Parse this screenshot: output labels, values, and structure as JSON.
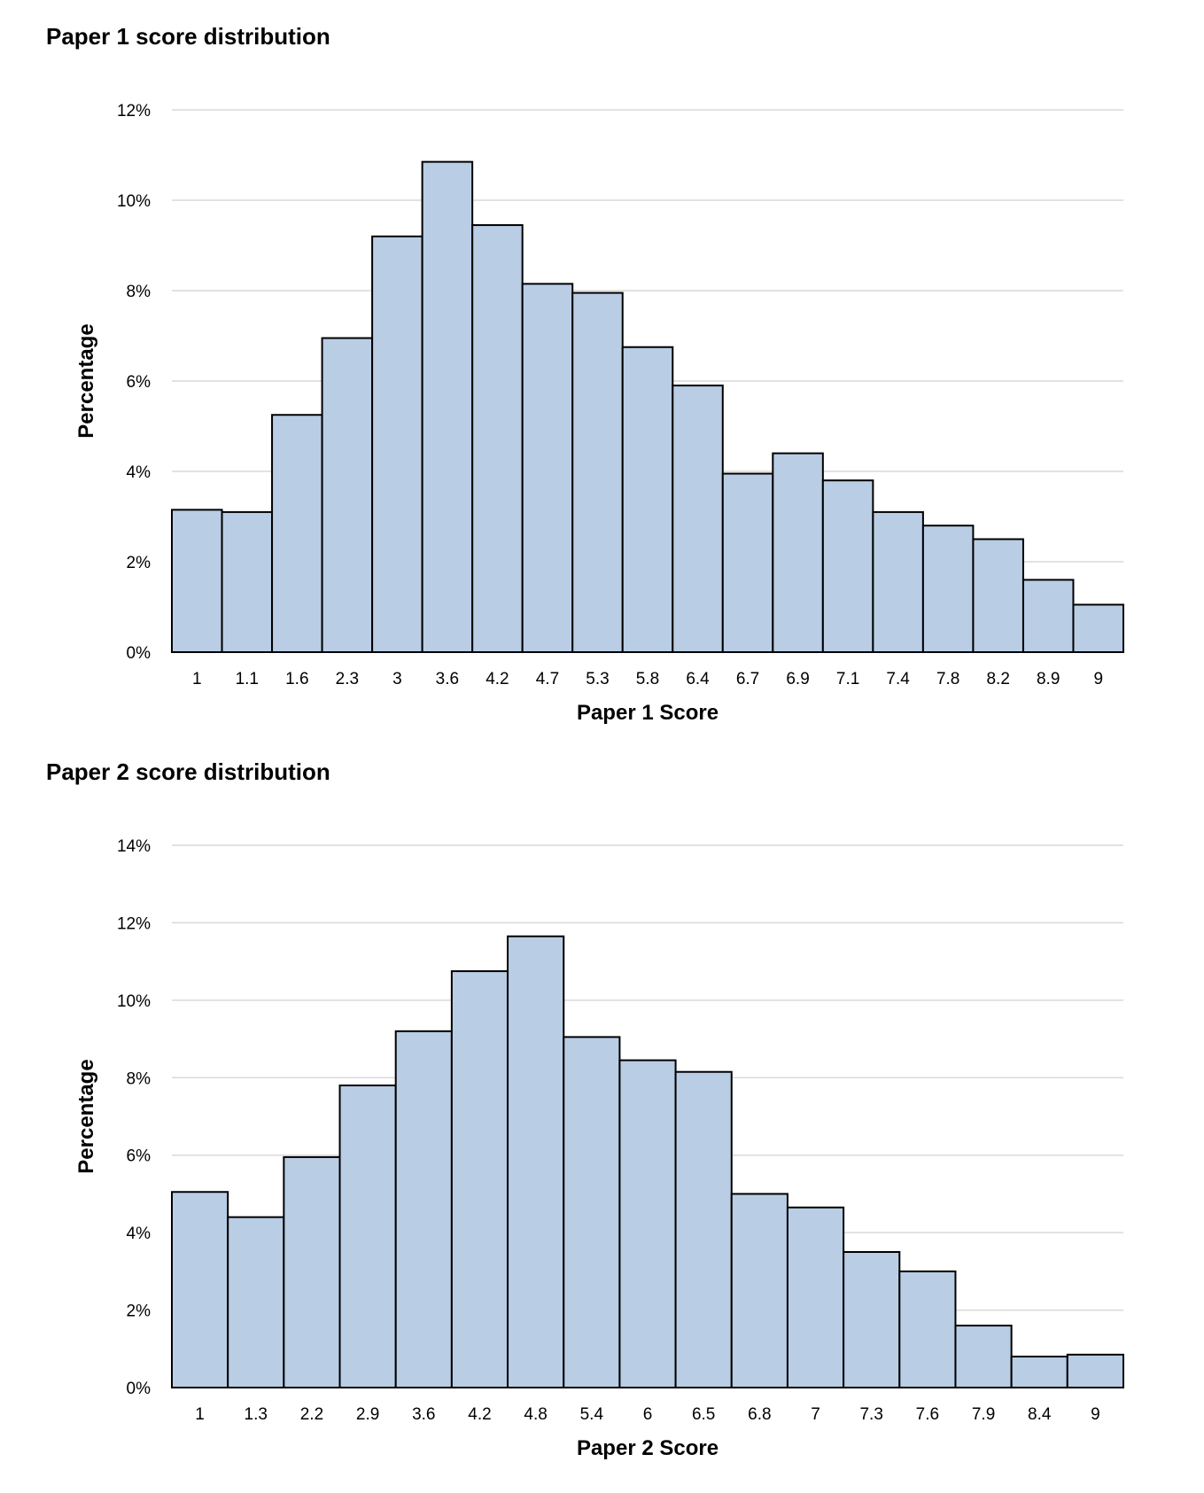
{
  "chart_data": [
    {
      "type": "bar",
      "title": "Paper 1 score distribution",
      "xlabel": "Paper 1 Score",
      "ylabel": "Percentage",
      "categories": [
        "1",
        "1.1",
        "1.6",
        "2.3",
        "3",
        "3.6",
        "4.2",
        "4.7",
        "5.3",
        "5.8",
        "6.4",
        "6.7",
        "6.9",
        "7.1",
        "7.4",
        "7.8",
        "8.2",
        "8.9",
        "9"
      ],
      "values": [
        3.15,
        3.1,
        5.25,
        6.95,
        9.2,
        10.85,
        9.45,
        8.15,
        7.95,
        6.75,
        5.9,
        3.95,
        4.4,
        3.8,
        3.1,
        2.8,
        2.5,
        1.6,
        1.05
      ],
      "ylim": [
        0,
        12
      ],
      "yticks": [
        "0%",
        "2%",
        "4%",
        "6%",
        "8%",
        "10%",
        "12%"
      ],
      "grid": true,
      "bar_color": "#b9cde5",
      "edge_color": "#000000"
    },
    {
      "type": "bar",
      "title": "Paper 2 score distribution",
      "xlabel": "Paper 2 Score",
      "ylabel": "Percentage",
      "categories": [
        "1",
        "1.3",
        "2.2",
        "2.9",
        "3.6",
        "4.2",
        "4.8",
        "5.4",
        "6",
        "6.5",
        "6.8",
        "7",
        "7.3",
        "7.6",
        "7.9",
        "8.4",
        "9"
      ],
      "values": [
        5.05,
        4.4,
        5.95,
        7.8,
        9.2,
        10.75,
        11.65,
        9.05,
        8.45,
        8.15,
        5.0,
        4.65,
        3.5,
        3.0,
        1.6,
        0.8,
        0.85
      ],
      "ylim": [
        0,
        14
      ],
      "yticks": [
        "0%",
        "2%",
        "4%",
        "6%",
        "8%",
        "10%",
        "12%",
        "14%"
      ],
      "grid": true,
      "bar_color": "#b9cde5",
      "edge_color": "#000000"
    }
  ]
}
